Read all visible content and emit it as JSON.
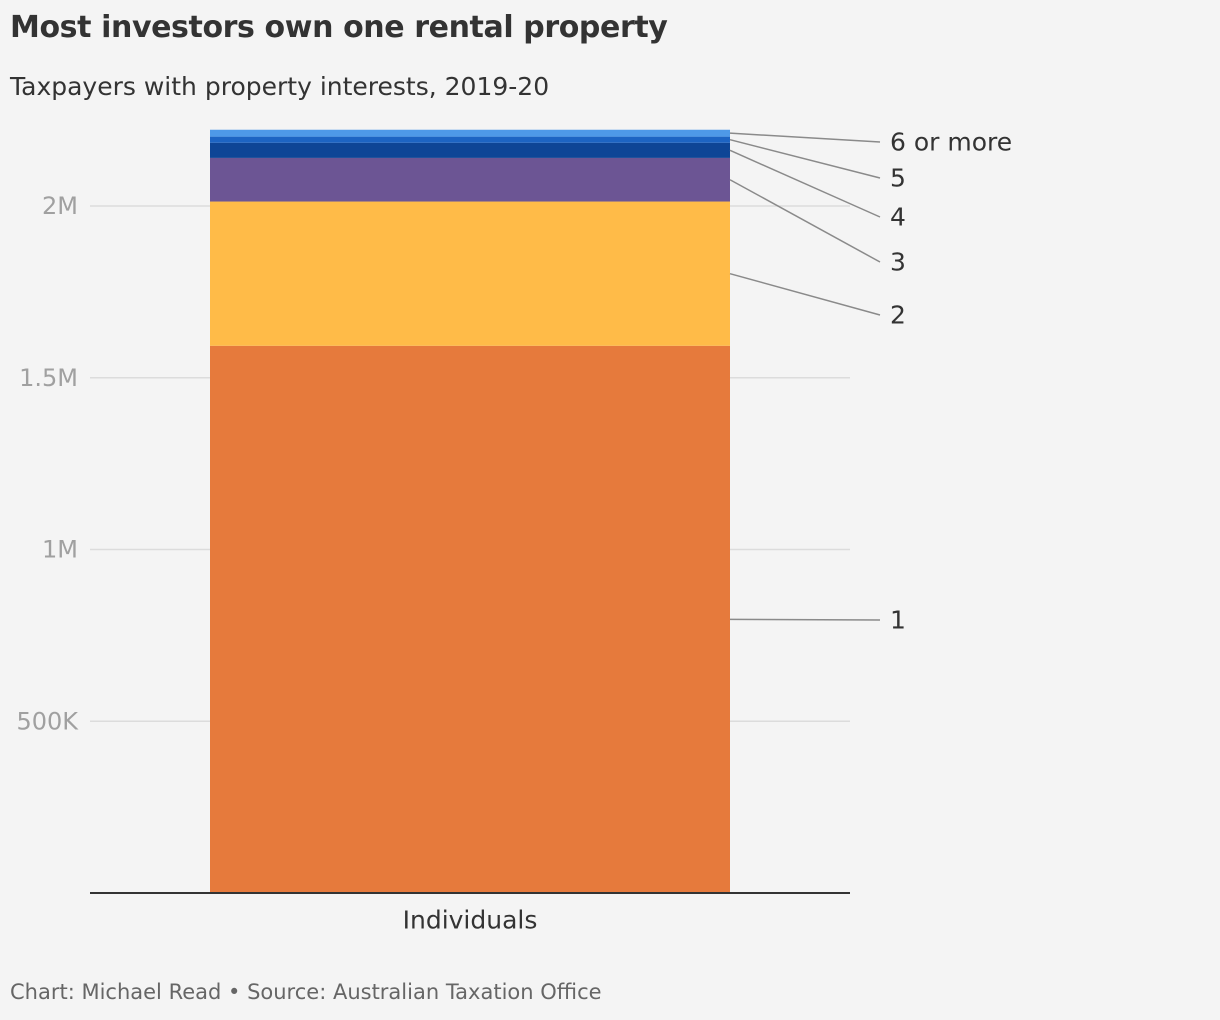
{
  "title": "Most investors own one rental property",
  "subtitle": "Taxpayers with property interests, 2019-20",
  "footer": "Chart: Michael Read • Source: Australian Taxation Office",
  "chart_data": {
    "type": "bar",
    "stacked": true,
    "categories": [
      "Individuals"
    ],
    "yticks": [
      {
        "value": 500000,
        "label": "500K"
      },
      {
        "value": 1000000,
        "label": "1M"
      },
      {
        "value": 1500000,
        "label": "1.5M"
      },
      {
        "value": 2000000,
        "label": "2M"
      }
    ],
    "ylim": [
      0,
      2300000
    ],
    "grid": true,
    "legend": "direct labels on the right",
    "series": [
      {
        "name": "1",
        "values": [
          1593000
        ],
        "color": "#e67a3c"
      },
      {
        "name": "2",
        "values": [
          420000
        ],
        "color": "#ffbb48"
      },
      {
        "name": "3",
        "values": [
          127000
        ],
        "color": "#6c5594"
      },
      {
        "name": "4",
        "values": [
          44000
        ],
        "color": "#0e4596"
      },
      {
        "name": "5",
        "values": [
          18000
        ],
        "color": "#1d64c3"
      },
      {
        "name": "6 or more",
        "values": [
          20000
        ],
        "color": "#4e99e8"
      }
    ]
  }
}
